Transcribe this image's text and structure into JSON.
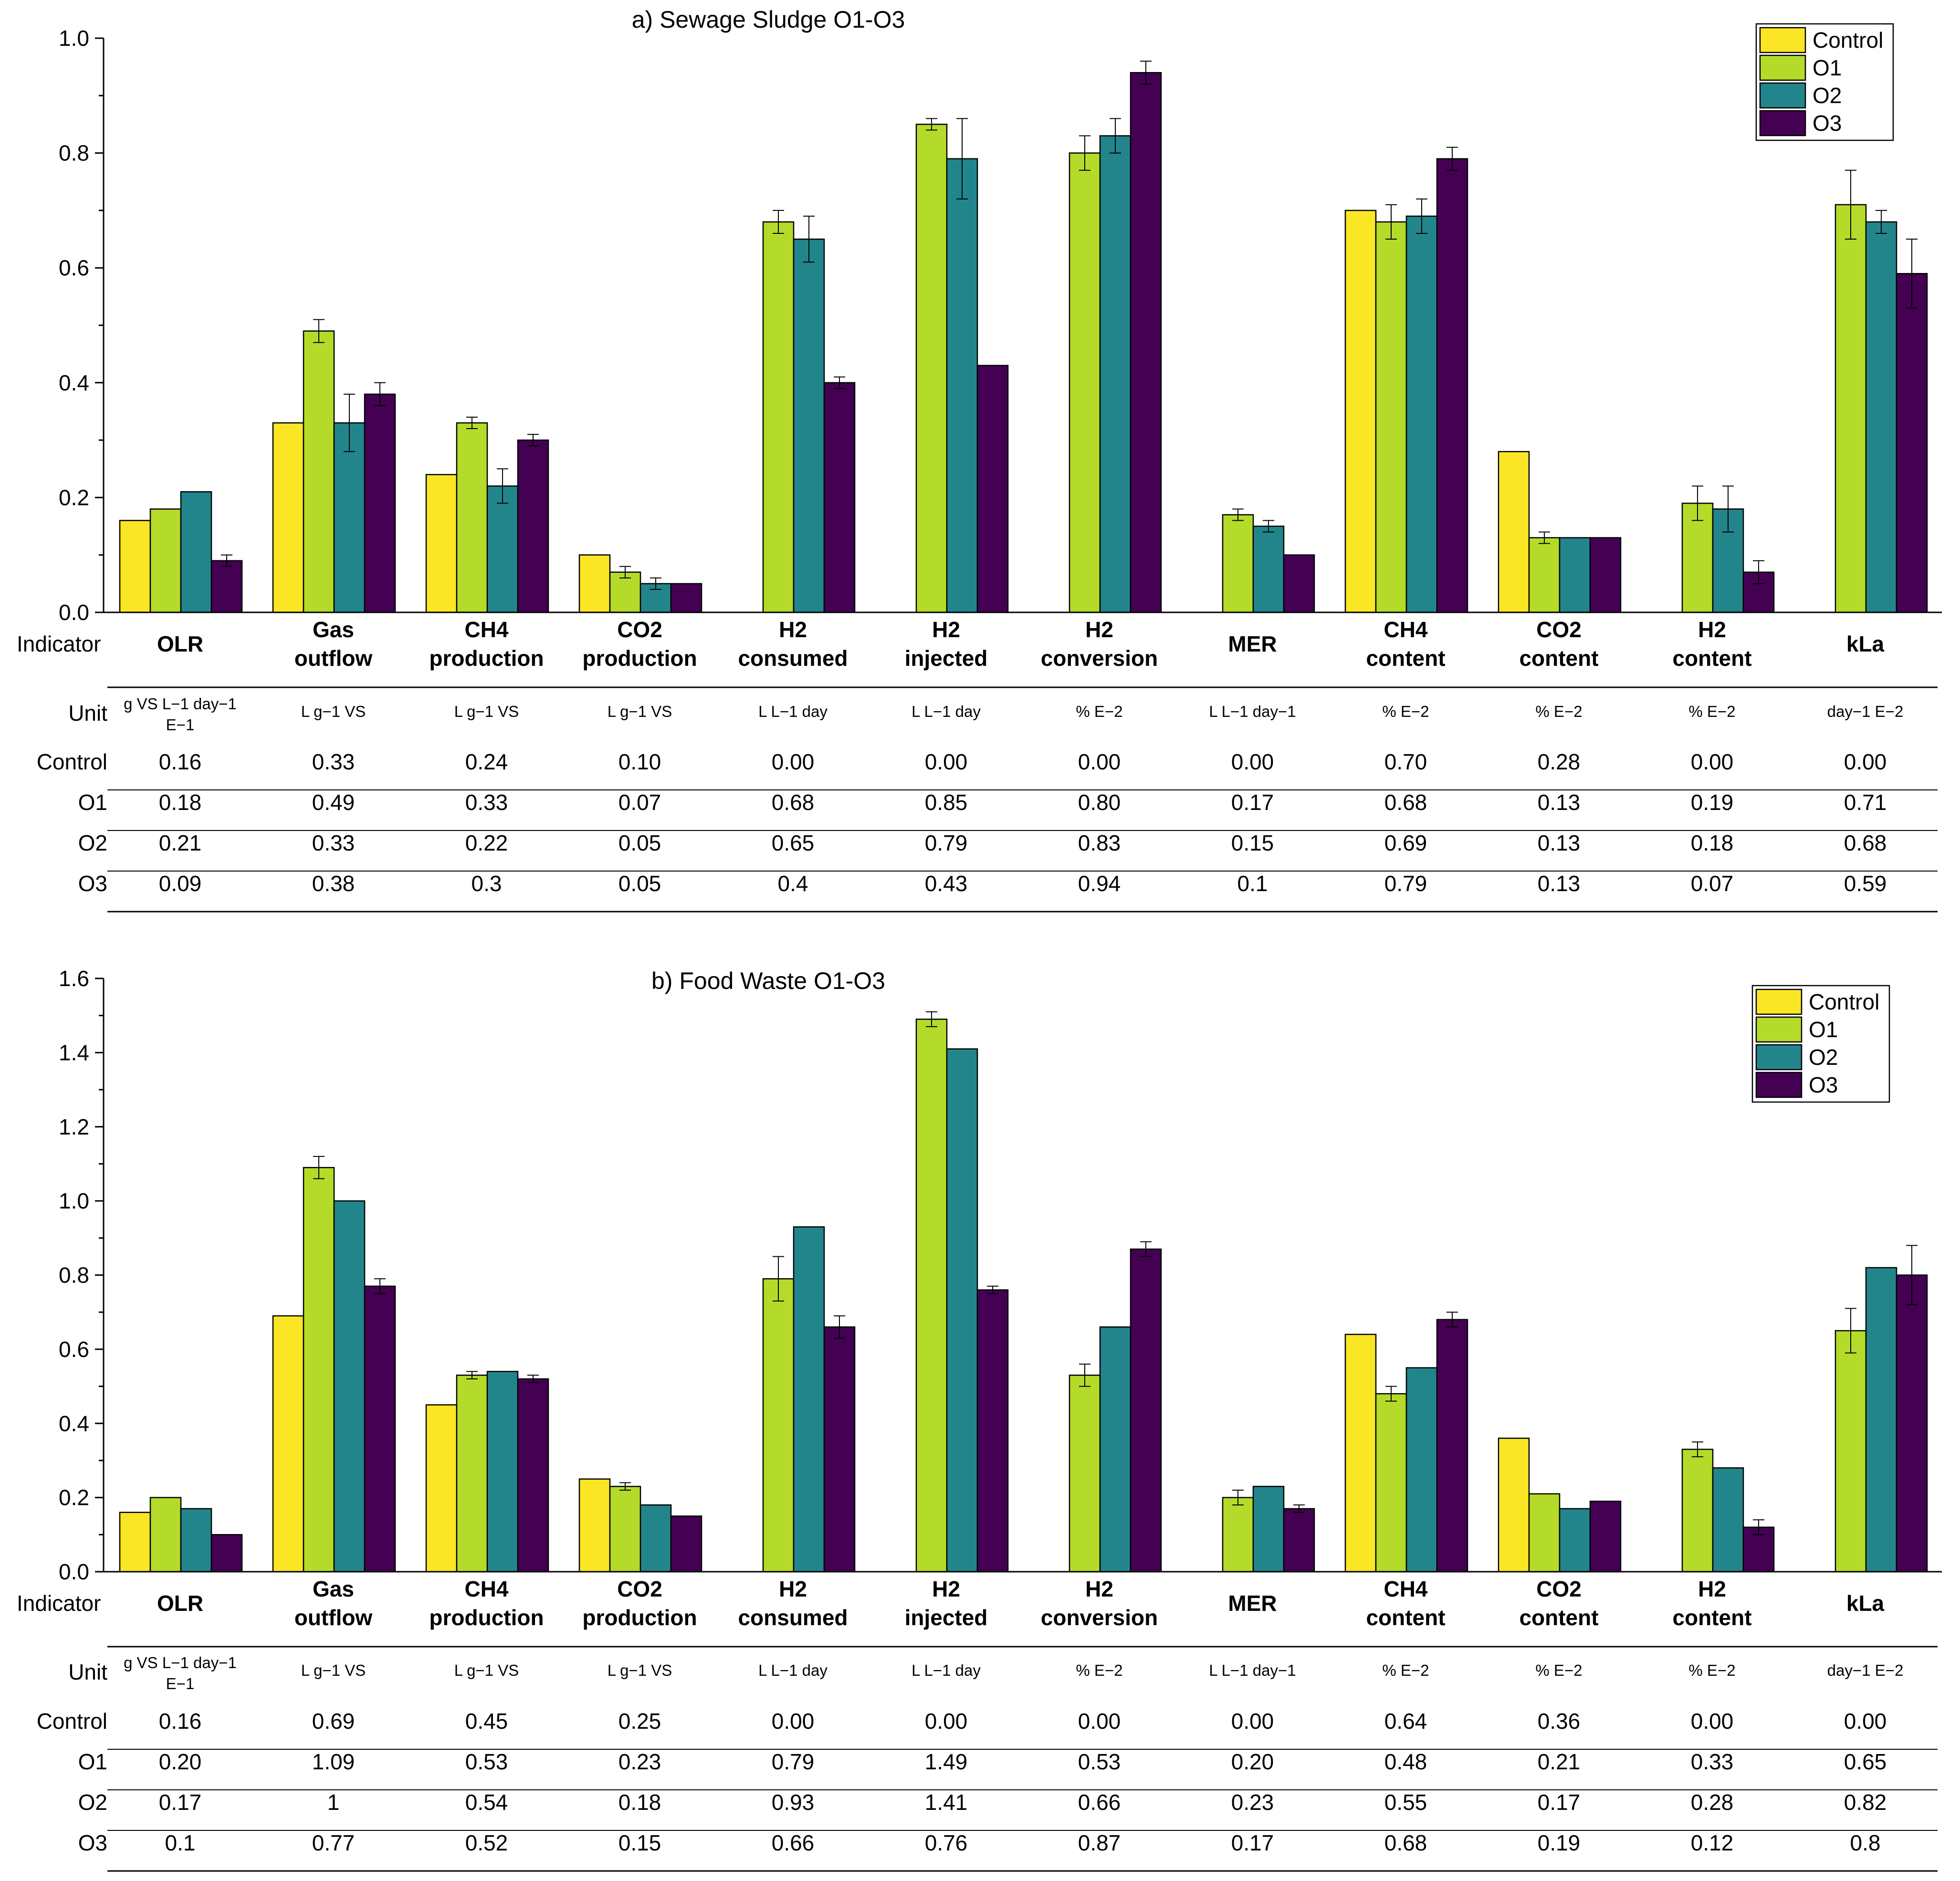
{
  "legend": [
    "Control",
    "O1",
    "O2",
    "O3"
  ],
  "colors": {
    "Control": "#FBE625",
    "O1": "#B5DB2A",
    "O2": "#23858C",
    "O3": "#440053"
  },
  "table_labels": {
    "indicator": "Indicator",
    "unit": "Unit"
  },
  "categories": [
    "OLR",
    "Gas outflow",
    "CH4 production",
    "CO2 production",
    "H2 consumed",
    "H2 injected",
    "H2 conversion",
    "MER",
    "CH4 content",
    "CO2 content",
    "H2 content",
    "kLa"
  ],
  "category_lines": [
    [
      "OLR"
    ],
    [
      "Gas",
      "outflow"
    ],
    [
      "CH4",
      "production"
    ],
    [
      "CO2",
      "production"
    ],
    [
      "H2",
      "consumed"
    ],
    [
      "H2",
      "injected"
    ],
    [
      "H2",
      "conversion"
    ],
    [
      "MER"
    ],
    [
      "CH4",
      "content"
    ],
    [
      "CO2",
      "content"
    ],
    [
      "H2",
      "content"
    ],
    [
      "kLa"
    ]
  ],
  "units": [
    [
      "g VS L−1 day−1",
      "E−1"
    ],
    [
      "L g−1 VS"
    ],
    [
      "L g−1 VS"
    ],
    [
      "L g−1 VS"
    ],
    [
      "L L−1 day"
    ],
    [
      "L L−1 day"
    ],
    [
      "% E−2"
    ],
    [
      "L L−1  day−1"
    ],
    [
      "% E−2"
    ],
    [
      "% E−2"
    ],
    [
      "% E−2"
    ],
    [
      "day−1 E−2"
    ]
  ],
  "chart_data": [
    {
      "type": "bar",
      "title": "a) Sewage Sludge O1-O3",
      "ylim": [
        0,
        1.0
      ],
      "yticks": [
        "0.0",
        "0.2",
        "0.4",
        "0.6",
        "0.8",
        "1.0"
      ],
      "legend_position": "top-right",
      "series": [
        {
          "name": "Control",
          "values": [
            0.16,
            0.33,
            0.24,
            0.1,
            0.0,
            0.0,
            0.0,
            0.0,
            0.7,
            0.28,
            0.0,
            0.0
          ],
          "errors": [
            0,
            0,
            0,
            0,
            0,
            0,
            0,
            0,
            0,
            0,
            0,
            0
          ]
        },
        {
          "name": "O1",
          "values": [
            0.18,
            0.49,
            0.33,
            0.07,
            0.68,
            0.85,
            0.8,
            0.17,
            0.68,
            0.13,
            0.19,
            0.71
          ],
          "errors": [
            0,
            0.02,
            0.01,
            0.01,
            0.02,
            0.01,
            0.03,
            0.01,
            0.03,
            0.01,
            0.03,
            0.06
          ]
        },
        {
          "name": "O2",
          "values": [
            0.21,
            0.33,
            0.22,
            0.05,
            0.65,
            0.79,
            0.83,
            0.15,
            0.69,
            0.13,
            0.18,
            0.68
          ],
          "errors": [
            0,
            0.05,
            0.03,
            0.01,
            0.04,
            0.07,
            0.03,
            0.01,
            0.03,
            0,
            0.04,
            0.02
          ]
        },
        {
          "name": "O3",
          "values": [
            0.09,
            0.38,
            0.3,
            0.05,
            0.4,
            0.43,
            0.94,
            0.1,
            0.79,
            0.13,
            0.07,
            0.59
          ],
          "errors": [
            0.01,
            0.02,
            0.01,
            0,
            0.01,
            0,
            0.02,
            0,
            0.02,
            0,
            0.02,
            0.06
          ]
        }
      ],
      "table": {
        "Control": [
          "0.16",
          "0.33",
          "0.24",
          "0.10",
          "0.00",
          "0.00",
          "0.00",
          "0.00",
          "0.70",
          "0.28",
          "0.00",
          "0.00"
        ],
        "O1": [
          "0.18",
          "0.49",
          "0.33",
          "0.07",
          "0.68",
          "0.85",
          "0.80",
          "0.17",
          "0.68",
          "0.13",
          "0.19",
          "0.71"
        ],
        "O2": [
          "0.21",
          "0.33",
          "0.22",
          "0.05",
          "0.65",
          "0.79",
          "0.83",
          "0.15",
          "0.69",
          "0.13",
          "0.18",
          "0.68"
        ],
        "O3": [
          "0.09",
          "0.38",
          "0.3",
          "0.05",
          "0.4",
          "0.43",
          "0.94",
          "0.1",
          "0.79",
          "0.13",
          "0.07",
          "0.59"
        ]
      }
    },
    {
      "type": "bar",
      "title": "b) Food Waste O1-O3",
      "ylim": [
        0,
        1.6
      ],
      "yticks": [
        "0.0",
        "0.2",
        "0.4",
        "0.6",
        "0.8",
        "1.0",
        "1.2",
        "1.4",
        "1.6"
      ],
      "legend_position": "top-right",
      "series": [
        {
          "name": "Control",
          "values": [
            0.16,
            0.69,
            0.45,
            0.25,
            0.0,
            0.0,
            0.0,
            0.0,
            0.64,
            0.36,
            0.0,
            0.0
          ],
          "errors": [
            0,
            0,
            0,
            0,
            0,
            0,
            0,
            0,
            0,
            0,
            0,
            0
          ]
        },
        {
          "name": "O1",
          "values": [
            0.2,
            1.09,
            0.53,
            0.23,
            0.79,
            1.49,
            0.53,
            0.2,
            0.48,
            0.21,
            0.33,
            0.65
          ],
          "errors": [
            0,
            0.03,
            0.01,
            0.01,
            0.06,
            0.02,
            0.03,
            0.02,
            0.02,
            0,
            0.02,
            0.06
          ]
        },
        {
          "name": "O2",
          "values": [
            0.17,
            1.0,
            0.54,
            0.18,
            0.93,
            1.41,
            0.66,
            0.23,
            0.55,
            0.17,
            0.28,
            0.82
          ],
          "errors": [
            0,
            0,
            0,
            0,
            0,
            0,
            0,
            0,
            0,
            0,
            0,
            0
          ]
        },
        {
          "name": "O3",
          "values": [
            0.1,
            0.77,
            0.52,
            0.15,
            0.66,
            0.76,
            0.87,
            0.17,
            0.68,
            0.19,
            0.12,
            0.8
          ],
          "errors": [
            0,
            0.02,
            0.01,
            0,
            0.03,
            0.01,
            0.02,
            0.01,
            0.02,
            0,
            0.02,
            0.08
          ]
        }
      ],
      "table": {
        "Control": [
          "0.16",
          "0.69",
          "0.45",
          "0.25",
          "0.00",
          "0.00",
          "0.00",
          "0.00",
          "0.64",
          "0.36",
          "0.00",
          "0.00"
        ],
        "O1": [
          "0.20",
          "1.09",
          "0.53",
          "0.23",
          "0.79",
          "1.49",
          "0.53",
          "0.20",
          "0.48",
          "0.21",
          "0.33",
          "0.65"
        ],
        "O2": [
          "0.17",
          "1",
          "0.54",
          "0.18",
          "0.93",
          "1.41",
          "0.66",
          "0.23",
          "0.55",
          "0.17",
          "0.28",
          "0.82"
        ],
        "O3": [
          "0.1",
          "0.77",
          "0.52",
          "0.15",
          "0.66",
          "0.76",
          "0.87",
          "0.17",
          "0.68",
          "0.19",
          "0.12",
          "0.8"
        ]
      }
    }
  ]
}
